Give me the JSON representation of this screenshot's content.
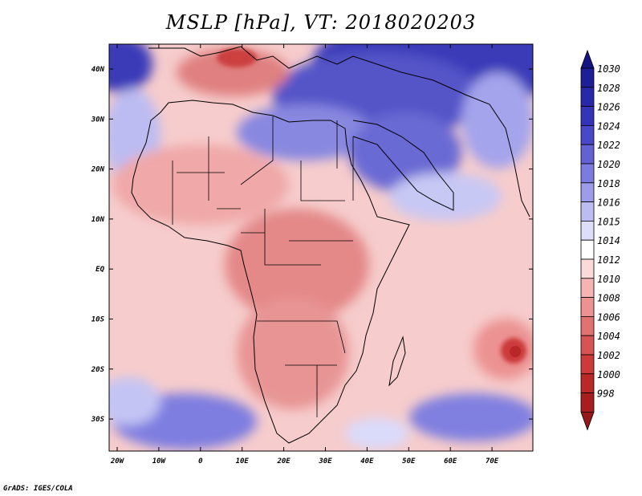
{
  "title": "MSLP [hPa], VT: 2018020203",
  "credit": "GrADS: IGES/COLA",
  "lat_ticks": [
    "40N",
    "30N",
    "20N",
    "10N",
    "EQ",
    "10S",
    "20S",
    "30S"
  ],
  "lon_ticks": [
    "20W",
    "10W",
    "0",
    "10E",
    "20E",
    "30E",
    "40E",
    "50E",
    "60E",
    "70E"
  ],
  "colorbar": {
    "labels": [
      "1030",
      "1028",
      "1026",
      "1024",
      "1022",
      "1020",
      "1018",
      "1016",
      "1015",
      "1014",
      "1012",
      "1010",
      "1008",
      "1006",
      "1004",
      "1002",
      "1000",
      "998"
    ],
    "colors": [
      "#1e1e96",
      "#2828aa",
      "#3434b9",
      "#4848c8",
      "#6262d4",
      "#7c7ce0",
      "#9c9cea",
      "#bcbcf2",
      "#dedefa",
      "#ffffff",
      "#fbdada",
      "#f4b4b4",
      "#ec9292",
      "#e27272",
      "#d85454",
      "#cc3a3a",
      "#bb2828",
      "#a81e1e"
    ],
    "top_color": "#141482",
    "bottom_color": "#961818"
  },
  "colors": {
    "ocean_base": "#f5c6c6",
    "land_base": "#ee9e9e",
    "border": "#000000"
  }
}
